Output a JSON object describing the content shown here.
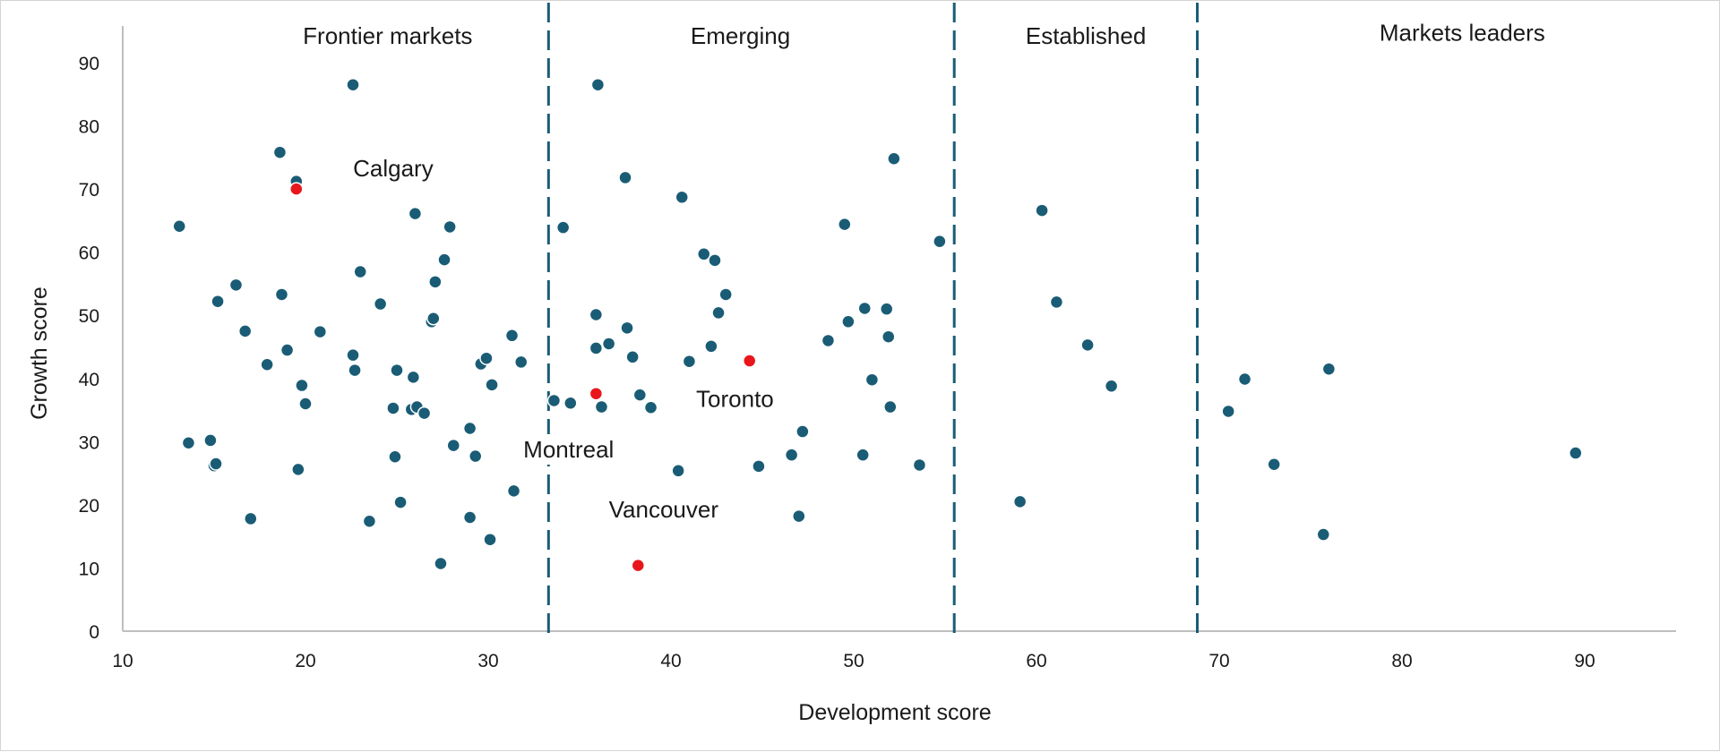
{
  "chart_data": {
    "type": "scatter",
    "title": "",
    "xlabel": "Development score",
    "ylabel": "Growth score",
    "xlim": [
      10,
      95
    ],
    "ylim": [
      0,
      95
    ],
    "x_ticks": [
      "10",
      "20",
      "30",
      "40",
      "50",
      "60",
      "70",
      "80",
      "90"
    ],
    "y_ticks": [
      "0",
      "10",
      "20",
      "30",
      "40",
      "50",
      "60",
      "70",
      "80",
      "90"
    ],
    "grid": false,
    "colors": {
      "points": "#1a5c75",
      "highlight": "#e8161b",
      "divider": "#1a5c75",
      "axis": "#bfbfbf"
    },
    "dividers": [
      33.3,
      55.5,
      68.8
    ],
    "regions": [
      {
        "label": "Frontier markets",
        "x": 24.5,
        "y": 93
      },
      {
        "label": "Emerging",
        "x": 43.8,
        "y": 93
      },
      {
        "label": "Established",
        "x": 62.7,
        "y": 93
      },
      {
        "label": "Markets leaders",
        "x": 83.3,
        "y": 93.5
      }
    ],
    "highlighted": [
      {
        "name": "Calgary",
        "x": 19.5,
        "y": 70.0,
        "label_x": 24.8,
        "label_y": 72
      },
      {
        "name": "Toronto",
        "x": 44.3,
        "y": 42.8,
        "label_x": 43.5,
        "label_y": 35.5
      },
      {
        "name": "Montreal",
        "x": 35.9,
        "y": 37.6,
        "label_x": 34.4,
        "label_y": 27.5
      },
      {
        "name": "Vancouver",
        "x": 38.2,
        "y": 10.4,
        "label_x": 39.6,
        "label_y": 18
      }
    ],
    "series": [
      {
        "name": "Cities",
        "x": [
          22.6,
          18.6,
          19.5,
          13.1,
          15.2,
          16.2,
          16.7,
          17.9,
          18.7,
          19.0,
          19.8,
          20.0,
          20.8,
          13.6,
          14.8,
          15.0,
          15.1,
          17.0,
          19.6,
          22.6,
          22.7,
          23.0,
          23.5,
          24.1,
          24.8,
          24.9,
          25.0,
          25.2,
          25.8,
          25.9,
          26.0,
          26.1,
          26.5,
          26.9,
          27.0,
          27.1,
          27.4,
          27.6,
          27.9,
          28.1,
          29.0,
          29.0,
          29.3,
          29.6,
          29.9,
          30.1,
          30.2,
          31.3,
          31.4,
          31.8,
          36.0,
          34.1,
          33.6,
          34.5,
          35.9,
          35.9,
          36.2,
          36.6,
          37.5,
          37.6,
          37.9,
          38.3,
          38.9,
          40.4,
          40.6,
          41.0,
          41.8,
          42.2,
          42.4,
          42.6,
          43.0,
          44.8,
          46.6,
          47.0,
          47.2,
          48.6,
          49.5,
          49.7,
          50.5,
          50.6,
          51.0,
          51.8,
          51.9,
          52.0,
          52.2,
          53.6,
          54.7,
          59.1,
          60.3,
          61.1,
          62.8,
          64.1,
          70.5,
          71.4,
          73.0,
          75.7,
          76.0,
          89.5
        ],
        "y": [
          86.5,
          75.8,
          71.2,
          64.1,
          52.2,
          54.8,
          47.5,
          42.2,
          53.3,
          44.5,
          38.9,
          36.0,
          47.4,
          29.8,
          30.2,
          26.2,
          26.5,
          17.8,
          25.6,
          43.7,
          41.3,
          56.9,
          17.4,
          51.8,
          35.3,
          27.6,
          41.3,
          20.4,
          35.1,
          40.2,
          66.1,
          35.5,
          34.5,
          49.0,
          49.5,
          55.3,
          10.7,
          58.8,
          64.0,
          29.4,
          32.1,
          18.0,
          27.7,
          42.3,
          43.2,
          14.5,
          39.0,
          46.8,
          22.2,
          42.6,
          86.5,
          63.9,
          36.5,
          36.1,
          50.1,
          44.8,
          35.5,
          45.5,
          71.8,
          48.0,
          43.4,
          37.4,
          35.4,
          25.4,
          68.7,
          42.7,
          59.7,
          45.1,
          58.7,
          50.4,
          53.3,
          26.1,
          27.9,
          18.2,
          31.6,
          46.0,
          64.4,
          49.0,
          27.9,
          51.1,
          39.8,
          51.0,
          46.6,
          35.5,
          74.8,
          26.3,
          61.7,
          20.5,
          66.6,
          52.1,
          45.3,
          38.8,
          34.8,
          39.9,
          26.4,
          15.3,
          41.5,
          28.2
        ]
      }
    ]
  }
}
